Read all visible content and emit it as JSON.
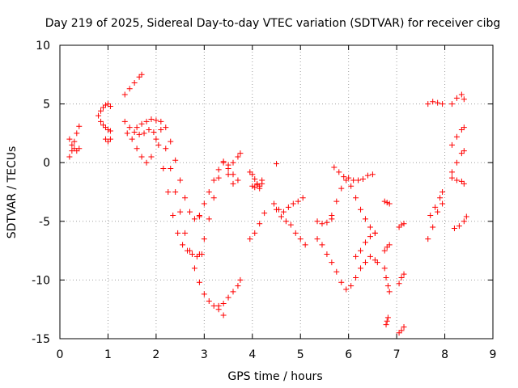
{
  "chart_data": {
    "type": "scatter",
    "title": "Day 219 of 2025, Sidereal Day-to-day VTEC variation (SDTVAR) for receiver cibg",
    "xlabel": "GPS time / hours",
    "ylabel": "SDTVAR / TECUs",
    "xlim": [
      0,
      9
    ],
    "ylim": [
      -15,
      10
    ],
    "xticks": [
      0,
      1,
      2,
      3,
      4,
      5,
      6,
      7,
      8,
      9
    ],
    "yticks": [
      -15,
      -10,
      -5,
      0,
      5,
      10
    ],
    "grid": true,
    "marker": "+",
    "color": "#ff0000",
    "series": [
      {
        "name": "s01",
        "x": [
          0.2,
          0.25,
          0.3,
          0.35,
          0.4
        ],
        "y": [
          0.5,
          1.0,
          1.8,
          2.5,
          3.1
        ]
      },
      {
        "name": "s02",
        "x": [
          0.2,
          0.25,
          0.3,
          0.35,
          0.4
        ],
        "y": [
          2.0,
          1.5,
          1.2,
          1.0,
          1.2
        ]
      },
      {
        "name": "s03",
        "x": [
          0.8,
          0.85,
          0.9,
          0.95,
          1.0,
          1.05
        ],
        "y": [
          4.0,
          4.4,
          4.7,
          4.9,
          5.0,
          4.8
        ]
      },
      {
        "name": "s04",
        "x": [
          0.85,
          0.9,
          0.95,
          1.0,
          1.05
        ],
        "y": [
          3.5,
          3.2,
          3.0,
          2.8,
          2.7
        ]
      },
      {
        "name": "s05",
        "x": [
          0.95,
          1.0,
          1.05
        ],
        "y": [
          2.0,
          1.8,
          2.0
        ]
      },
      {
        "name": "s06",
        "x": [
          1.35,
          1.45,
          1.55,
          1.65,
          1.7
        ],
        "y": [
          5.8,
          6.3,
          6.8,
          7.3,
          7.5
        ]
      },
      {
        "name": "s07",
        "x": [
          1.35,
          1.45,
          1.55,
          1.65,
          1.75,
          1.85,
          1.95,
          2.05,
          2.15,
          2.25,
          2.35,
          2.45,
          2.55,
          2.65,
          2.75,
          2.85,
          2.95
        ],
        "y": [
          3.5,
          3.0,
          2.6,
          2.4,
          2.5,
          2.8,
          2.6,
          1.5,
          -0.5,
          -2.5,
          -4.5,
          -6.0,
          -7.0,
          -7.5,
          -7.8,
          -8.0,
          -7.8
        ]
      },
      {
        "name": "s08",
        "x": [
          1.4,
          1.5,
          1.6,
          1.7,
          1.8,
          1.9,
          2.0,
          2.1,
          2.2,
          2.3,
          2.4,
          2.5,
          2.6,
          2.7,
          2.8,
          2.9
        ],
        "y": [
          2.5,
          2.0,
          1.2,
          0.5,
          0.0,
          0.5,
          2.0,
          3.5,
          3.0,
          1.8,
          0.2,
          -1.5,
          -3.0,
          -4.2,
          -4.8,
          -4.6
        ]
      },
      {
        "name": "s09",
        "x": [
          1.6,
          1.7,
          1.8,
          1.9,
          2.0,
          2.1,
          2.2,
          2.3,
          2.4,
          2.5,
          2.6,
          2.7,
          2.8,
          2.9,
          3.0,
          3.1,
          3.2,
          3.3,
          3.4
        ],
        "y": [
          3.0,
          3.3,
          3.5,
          3.7,
          3.6,
          2.8,
          1.2,
          -0.5,
          -2.5,
          -4.2,
          -6.0,
          -7.5,
          -9.0,
          -10.2,
          -11.2,
          -11.8,
          -12.2,
          -12.5,
          -13.0
        ]
      },
      {
        "name": "s10",
        "x": [
          2.9,
          3.0,
          3.1,
          3.2,
          3.3,
          3.4,
          3.5,
          3.6
        ],
        "y": [
          -4.5,
          -3.5,
          -2.5,
          -1.5,
          -0.6,
          0.1,
          -0.2,
          -1.0
        ]
      },
      {
        "name": "s11",
        "x": [
          2.9,
          3.0,
          3.1,
          3.2,
          3.3,
          3.4,
          3.5,
          3.6,
          3.7
        ],
        "y": [
          -7.8,
          -6.5,
          -4.8,
          -3.0,
          -1.3,
          0.0,
          -1.0,
          -1.8,
          -1.5
        ]
      },
      {
        "name": "s12",
        "x": [
          3.3,
          3.4,
          3.5,
          3.6,
          3.7,
          3.75
        ],
        "y": [
          -12.2,
          -12.0,
          -11.5,
          -11.0,
          -10.5,
          -10.0
        ]
      },
      {
        "name": "s13",
        "x": [
          3.5,
          3.6,
          3.7,
          3.75
        ],
        "y": [
          -0.5,
          0.0,
          0.5,
          0.8
        ]
      },
      {
        "name": "s14",
        "x": [
          3.95,
          4.0,
          4.05,
          4.1,
          4.15,
          4.2
        ],
        "y": [
          -0.8,
          -1.0,
          -1.4,
          -1.8,
          -2.2,
          -1.5
        ]
      },
      {
        "name": "s15",
        "x": [
          4.0,
          4.05,
          4.1,
          4.15,
          4.2
        ],
        "y": [
          -2.0,
          -2.1,
          -1.9,
          -2.0,
          -1.8
        ]
      },
      {
        "name": "s16",
        "x": [
          3.95,
          4.05,
          4.15,
          4.25
        ],
        "y": [
          -6.5,
          -6.0,
          -5.2,
          -4.3
        ]
      },
      {
        "name": "s17",
        "x": [
          4.5
        ],
        "y": [
          -0.1
        ]
      },
      {
        "name": "s18",
        "x": [
          4.45,
          4.55,
          4.65,
          4.75,
          4.85,
          4.95,
          5.05
        ],
        "y": [
          -3.5,
          -4.0,
          -4.2,
          -3.8,
          -3.5,
          -3.3,
          -3.0
        ]
      },
      {
        "name": "s19",
        "x": [
          4.5,
          4.6,
          4.7,
          4.8,
          4.9,
          5.0,
          5.1
        ],
        "y": [
          -4.0,
          -4.6,
          -5.0,
          -5.3,
          -6.0,
          -6.5,
          -7.0
        ]
      },
      {
        "name": "s20",
        "x": [
          5.35,
          5.45,
          5.55,
          5.65
        ],
        "y": [
          -5.0,
          -5.2,
          -5.1,
          -4.8
        ]
      },
      {
        "name": "s21",
        "x": [
          5.35,
          5.45,
          5.55,
          5.65,
          5.75,
          5.85,
          5.95,
          6.05,
          6.15,
          6.25
        ],
        "y": [
          -6.5,
          -7.0,
          -7.8,
          -8.5,
          -9.3,
          -10.2,
          -10.8,
          -10.5,
          -9.8,
          -9.0
        ]
      },
      {
        "name": "s22",
        "x": [
          5.65,
          5.75,
          5.85,
          5.95,
          6.05,
          6.15,
          6.25,
          6.35,
          6.45,
          6.55
        ],
        "y": [
          -4.5,
          -3.3,
          -2.2,
          -1.5,
          -2.0,
          -3.0,
          -4.0,
          -4.8,
          -5.5,
          -6.0
        ]
      },
      {
        "name": "s23",
        "x": [
          5.7,
          5.8,
          5.9,
          6.0,
          6.1,
          6.2,
          6.3,
          6.4,
          6.5
        ],
        "y": [
          -0.4,
          -0.8,
          -1.2,
          -1.3,
          -1.5,
          -1.5,
          -1.4,
          -1.1,
          -1.0
        ]
      },
      {
        "name": "s24",
        "x": [
          6.15,
          6.25,
          6.35,
          6.45,
          6.55
        ],
        "y": [
          -8.0,
          -7.5,
          -6.8,
          -6.3,
          -6.0
        ]
      },
      {
        "name": "s25",
        "x": [
          6.35,
          6.45,
          6.55,
          6.6
        ],
        "y": [
          -8.5,
          -8.0,
          -8.3,
          -8.5
        ]
      },
      {
        "name": "s26",
        "x": [
          6.75,
          6.8,
          6.85
        ],
        "y": [
          -3.3,
          -3.4,
          -3.5
        ]
      },
      {
        "name": "s27",
        "x": [
          6.75,
          6.8,
          6.85
        ],
        "y": [
          -7.5,
          -7.2,
          -7.0
        ]
      },
      {
        "name": "s28",
        "x": [
          6.75,
          6.78,
          6.82,
          6.85
        ],
        "y": [
          -9.0,
          -9.8,
          -10.5,
          -11.0
        ]
      },
      {
        "name": "s29",
        "x": [
          6.78,
          6.8,
          6.82
        ],
        "y": [
          -13.8,
          -13.5,
          -13.2
        ]
      },
      {
        "name": "s30",
        "x": [
          7.05,
          7.1,
          7.15
        ],
        "y": [
          -5.5,
          -5.3,
          -5.2
        ]
      },
      {
        "name": "s31",
        "x": [
          7.05,
          7.1,
          7.15
        ],
        "y": [
          -10.3,
          -9.8,
          -9.5
        ]
      },
      {
        "name": "s32",
        "x": [
          7.05,
          7.1,
          7.15
        ],
        "y": [
          -14.5,
          -14.3,
          -14.0
        ]
      },
      {
        "name": "s33",
        "x": [
          7.65,
          7.75,
          7.85,
          7.95
        ],
        "y": [
          5.0,
          5.2,
          5.1,
          5.0
        ]
      },
      {
        "name": "s34",
        "x": [
          7.65,
          7.75,
          7.85,
          7.95
        ],
        "y": [
          -6.5,
          -5.5,
          -4.2,
          -3.5
        ]
      },
      {
        "name": "s35",
        "x": [
          7.7,
          7.8,
          7.9,
          7.95
        ],
        "y": [
          -4.5,
          -3.8,
          -3.0,
          -2.5
        ]
      },
      {
        "name": "s36",
        "x": [
          8.15,
          8.25,
          8.35,
          8.4
        ],
        "y": [
          5.0,
          5.5,
          5.8,
          5.4
        ]
      },
      {
        "name": "s37",
        "x": [
          8.15,
          8.25,
          8.35,
          8.4
        ],
        "y": [
          1.5,
          2.2,
          2.8,
          3.0
        ]
      },
      {
        "name": "s38",
        "x": [
          8.15,
          8.25,
          8.35,
          8.4
        ],
        "y": [
          -0.8,
          0.0,
          0.8,
          1.0
        ]
      },
      {
        "name": "s39",
        "x": [
          8.15,
          8.25,
          8.35,
          8.4
        ],
        "y": [
          -1.3,
          -1.5,
          -1.6,
          -1.8
        ]
      },
      {
        "name": "s40",
        "x": [
          8.2,
          8.3,
          8.4,
          8.45
        ],
        "y": [
          -5.6,
          -5.4,
          -5.0,
          -4.6
        ]
      }
    ]
  }
}
